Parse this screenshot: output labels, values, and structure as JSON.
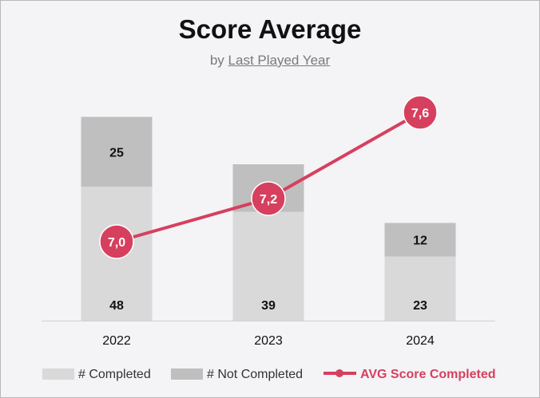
{
  "chart_data": {
    "type": "bar",
    "title": "Score Average",
    "subtitle_prefix": "by",
    "subtitle_link": "Last Played Year",
    "categories": [
      "2022",
      "2023",
      "2024"
    ],
    "series": [
      {
        "name": "# Completed",
        "kind": "stacked-bar",
        "values": [
          48,
          39,
          23
        ],
        "labels": [
          "48",
          "39",
          "23"
        ],
        "color": "#d9d9d9"
      },
      {
        "name": "# Not Completed",
        "kind": "stacked-bar",
        "values": [
          25,
          17,
          12
        ],
        "labels": [
          "25",
          "17",
          "12"
        ],
        "color": "#bfbfbf"
      },
      {
        "name": "AVG Score Completed",
        "kind": "line",
        "values": [
          7.0,
          7.2,
          7.6
        ],
        "labels": [
          "7,0",
          "7,2",
          "7,6"
        ],
        "color": "#d6405e"
      }
    ],
    "legend_placement": "bottom",
    "grid": false
  }
}
